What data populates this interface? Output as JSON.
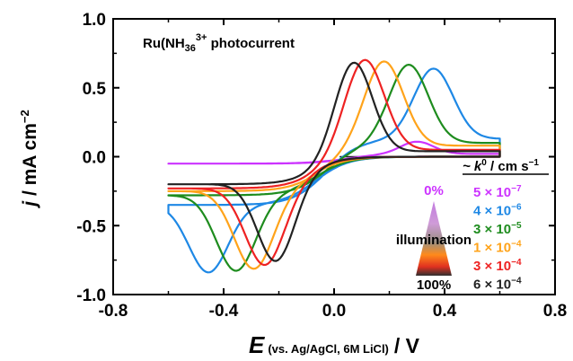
{
  "chart_data": {
    "type": "line",
    "title": "Ru(NH3)6^3+ photocurrent",
    "title_main": "Ru(NH",
    "title_sub": "3",
    "title_sub2": "6",
    "title_sup": "3+",
    "title_tail": " photocurrent",
    "xlabel": {
      "symbol": "E",
      "qualifier": "(vs. Ag/AgCl, 6M LiCl)",
      "unit": "/ V"
    },
    "ylabel": {
      "symbol": "j",
      "unit": "/ mA cm",
      "unit_sup": "−2"
    },
    "xlim": [
      -0.8,
      0.8
    ],
    "ylim": [
      -1.0,
      1.0
    ],
    "x_ticks": [
      "-0.8",
      "-0.4",
      "0.0",
      "0.4",
      "0.8"
    ],
    "x_tick_values": [
      -0.8,
      -0.4,
      0.0,
      0.4,
      0.8
    ],
    "y_ticks": [
      "1.0",
      "0.5",
      "0.0",
      "-0.5",
      "-1.0"
    ],
    "y_tick_values": [
      1.0,
      0.5,
      0.0,
      -0.5,
      -1.0
    ],
    "grid": false,
    "legend": {
      "header": "~ k",
      "header_sup": "0",
      "header_tail": " / cm s",
      "header_tail_sup": "−1",
      "placement": "bottom-right",
      "entries": [
        {
          "mant": "5 × 10",
          "exp": "−7",
          "color": "#cc33ff"
        },
        {
          "mant": "4 × 10",
          "exp": "−6",
          "color": "#1e88e5"
        },
        {
          "mant": "3 × 10",
          "exp": "−5",
          "color": "#1e8c1e"
        },
        {
          "mant": "1 × 10",
          "exp": "−4",
          "color": "#ffa31a"
        },
        {
          "mant": "3 × 10",
          "exp": "−4",
          "color": "#ee2222"
        },
        {
          "mant": "6 × 10",
          "exp": "−4",
          "color": "#222222"
        }
      ]
    },
    "illumination": {
      "top_label": "0%",
      "mid_label": "illumination",
      "bottom_label": "100%"
    },
    "series": [
      {
        "color": "#cc33ff",
        "params": {
          "Ea": 0.3,
          "Ec": -0.25,
          "ia": 0.11,
          "ic": 0.05,
          "wa": 0.085,
          "wc": 0.09,
          "base": 0.02,
          "cbase": -0.05
        }
      },
      {
        "color": "#1e88e5",
        "params": {
          "Ea": 0.36,
          "Ec": -0.455,
          "ia": 0.64,
          "ic": 0.84,
          "wa": 0.1,
          "wc": 0.1,
          "base": 0.13,
          "cbase": -0.35
        }
      },
      {
        "color": "#1e8c1e",
        "params": {
          "Ea": 0.27,
          "Ec": -0.355,
          "ia": 0.67,
          "ic": 0.83,
          "wa": 0.1,
          "wc": 0.1,
          "base": 0.1,
          "cbase": -0.28
        }
      },
      {
        "color": "#ffa31a",
        "params": {
          "Ea": 0.18,
          "Ec": -0.29,
          "ia": 0.7,
          "ic": 0.82,
          "wa": 0.1,
          "wc": 0.1,
          "base": 0.08,
          "cbase": -0.25
        }
      },
      {
        "color": "#ee2222",
        "params": {
          "Ea": 0.11,
          "Ec": -0.25,
          "ia": 0.72,
          "ic": 0.8,
          "wa": 0.1,
          "wc": 0.1,
          "base": 0.05,
          "cbase": -0.23
        }
      },
      {
        "color": "#222222",
        "params": {
          "Ea": 0.07,
          "Ec": -0.21,
          "ia": 0.71,
          "ic": 0.78,
          "wa": 0.095,
          "wc": 0.095,
          "base": 0.04,
          "cbase": -0.2
        }
      }
    ],
    "x_range": [
      -0.6,
      0.6
    ]
  }
}
